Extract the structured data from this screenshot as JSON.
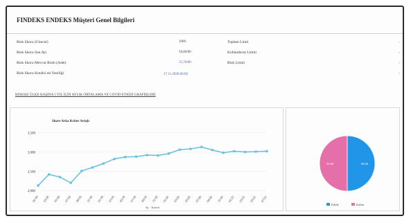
{
  "page": {
    "title": "FINDEKS ENDEKS Müşteri Genel Bilgileri",
    "info_rows": [
      {
        "label": "Risk Skoru (Güncel)",
        "value": "1006"
      },
      {
        "label": "Risk Skoru Son Ayı",
        "value": "58,80/80"
      },
      {
        "label": "Risk Skoru Mevcut Riski (Adet)",
        "value": "15,70/80"
      },
      {
        "label": "Risk Skoru Kredisi mi Yeniliği",
        "value": "17.11.2020 06:02"
      }
    ],
    "info_right": [
      "Toplam Limit",
      "Kullandırım Limiti",
      "Risk Limiti"
    ],
    "side_marks": [
      "›",
      "›",
      "›",
      "›"
    ],
    "section_title": "RISKSIZ ÜLKE BAŞINA 5 YIL İÇİN AYLIK ORTALAMA VE COVID ETKİSİ GRAFİKLERİ"
  },
  "chart_data": [
    {
      "type": "line",
      "title": "Skore Arka Kriter Artışlı",
      "xlabel": "Ay · Kriteri",
      "categories": [
        "01/18",
        "03/18",
        "05/18",
        "07/18",
        "09/18",
        "11/18",
        "01/19",
        "03/19",
        "05/19",
        "07/19",
        "09/19",
        "11/19",
        "01/20",
        "03/20",
        "05/20",
        "07/20",
        "09/20",
        "11/20",
        "01/21",
        "03/21",
        "05/21",
        "07/21"
      ],
      "y_ticks": [
        "3,500",
        "3,000",
        "2,500",
        "2,000"
      ],
      "ylim": [
        1950,
        3600
      ],
      "values": [
        2130,
        2420,
        2350,
        2200,
        2510,
        2600,
        2700,
        2820,
        2870,
        2880,
        2920,
        2910,
        2960,
        3060,
        3080,
        3130,
        3050,
        2980,
        3020,
        3000,
        3010,
        3020
      ],
      "color": "#6ec1dd",
      "grid": true
    },
    {
      "type": "pie",
      "slices": [
        {
          "label": "Erkek",
          "value": 50,
          "color": "#2196e8",
          "text": "50.00"
        },
        {
          "label": "Kadın",
          "value": 50,
          "color": "#e56fa8",
          "text": "50.00"
        }
      ],
      "legend_position": "bottom"
    }
  ]
}
